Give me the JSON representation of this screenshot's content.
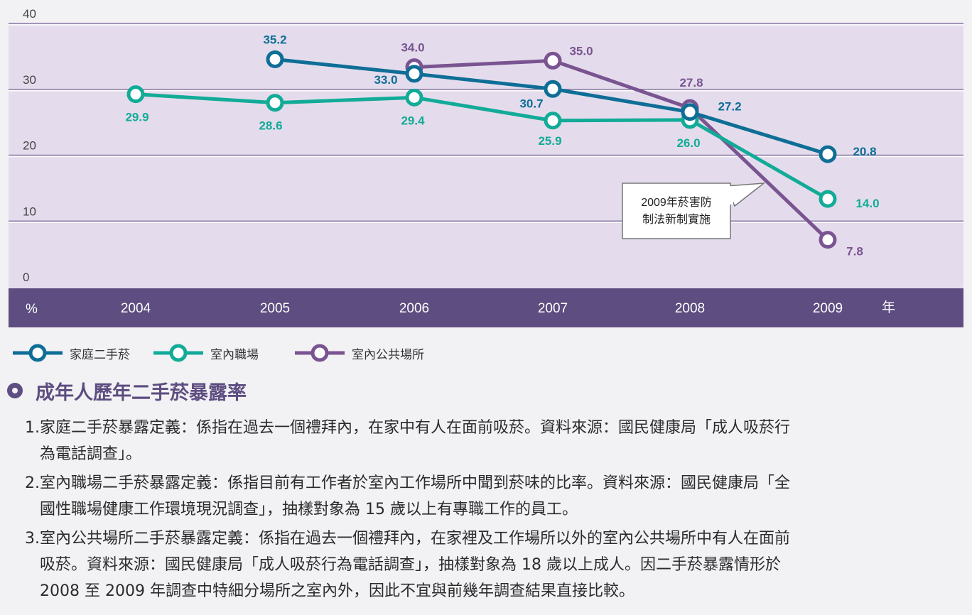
{
  "chart_data": {
    "type": "line",
    "x": [
      "2004",
      "2005",
      "2006",
      "2007",
      "2008",
      "2009"
    ],
    "xlabel": "年",
    "ylabel": "%",
    "ylim": [
      0,
      40
    ],
    "yticks": [
      "0",
      "10",
      "20",
      "30",
      "40"
    ],
    "grid": true,
    "series": [
      {
        "name": "家庭二手菸",
        "color": "#0e6e96",
        "values": [
          null,
          35.2,
          33.0,
          30.7,
          27.2,
          20.8
        ],
        "labels": [
          "",
          "35.2",
          "33.0",
          "30.7",
          "27.2",
          "20.8"
        ]
      },
      {
        "name": "室內職場",
        "color": "#12ab97",
        "values": [
          29.9,
          28.6,
          29.4,
          25.9,
          26.0,
          14.0
        ],
        "labels": [
          "29.9",
          "28.6",
          "29.4",
          "25.9",
          "26.0",
          "14.0"
        ]
      },
      {
        "name": "室內公共場所",
        "color": "#7a5491",
        "values": [
          null,
          null,
          34.0,
          35.0,
          27.8,
          7.8
        ],
        "labels": [
          "",
          "",
          "34.0",
          "35.0",
          "27.8",
          "7.8"
        ]
      }
    ],
    "annotation": {
      "line1": "2009年菸害防",
      "line2": "制法新制實施"
    }
  },
  "colors": {
    "plot_bg": "#e4dcec",
    "axis_bar": "#5d4d80",
    "gridline": "#8a7aa6",
    "page_bg": "#f2f1f4"
  },
  "title": "成年人歷年二手菸暴露率",
  "notes": [
    {
      "num": "1.",
      "lines": [
        "家庭二手菸暴露定義：係指在過去一個禮拜內，在家中有人在面前吸菸。資料來源：國民健康局「成人吸菸行",
        "為電話調查」。"
      ]
    },
    {
      "num": "2.",
      "lines": [
        "室內職場二手菸暴露定義：係指目前有工作者於室內工作場所中聞到菸味的比率。資料來源：國民健康局「全",
        "國性職場健康工作環境現況調查」，抽樣對象為 15 歲以上有專職工作的員工。"
      ]
    },
    {
      "num": "3.",
      "lines": [
        "室內公共場所二手菸暴露定義：係指在過去一個禮拜內，在家裡及工作場所以外的室內公共場所中有人在面前",
        "吸菸。資料來源：國民健康局「成人吸菸行為電話調查」，抽樣對象為 18 歲以上成人。因二手菸暴露情形於",
        "2008 至 2009 年調查中特細分場所之室內外，因此不宜與前幾年調查結果直接比較。"
      ]
    }
  ]
}
